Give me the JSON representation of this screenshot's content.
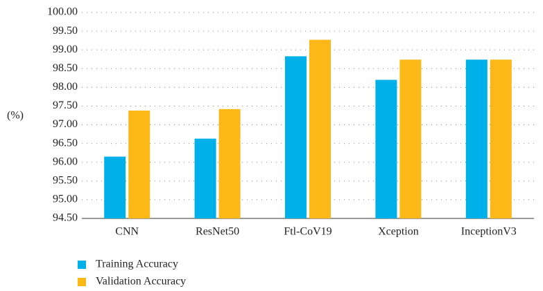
{
  "chart_data": {
    "type": "bar",
    "y_label": "(%)",
    "categories": [
      "CNN",
      "ResNet50",
      "Ftl-CoV19",
      "Xception",
      "InceptionV3"
    ],
    "series": [
      {
        "name": "Training Accuracy",
        "color": "#00b0e8",
        "values": [
          96.15,
          96.63,
          98.83,
          98.2,
          98.74
        ]
      },
      {
        "name": "Validation Accuracy",
        "color": "#fbb816",
        "values": [
          97.38,
          97.42,
          99.27,
          98.74,
          98.74
        ]
      }
    ],
    "ylim": [
      94.5,
      100
    ],
    "yticks": [
      {
        "value": 94.5,
        "label": "94.50"
      },
      {
        "value": 95,
        "label": "95.00"
      },
      {
        "value": 95.5,
        "label": "95.50"
      },
      {
        "value": 96,
        "label": "96.00"
      },
      {
        "value": 96.5,
        "label": "96.50"
      },
      {
        "value": 97,
        "label": "97.00"
      },
      {
        "value": 97.5,
        "label": "97.50"
      },
      {
        "value": 98,
        "label": "98.00"
      },
      {
        "value": 98.5,
        "label": "98.50"
      },
      {
        "value": 99,
        "label": "99.00"
      },
      {
        "value": 99.5,
        "label": "99.50"
      },
      {
        "value": 100,
        "label": "100.00"
      }
    ],
    "grid": true
  }
}
